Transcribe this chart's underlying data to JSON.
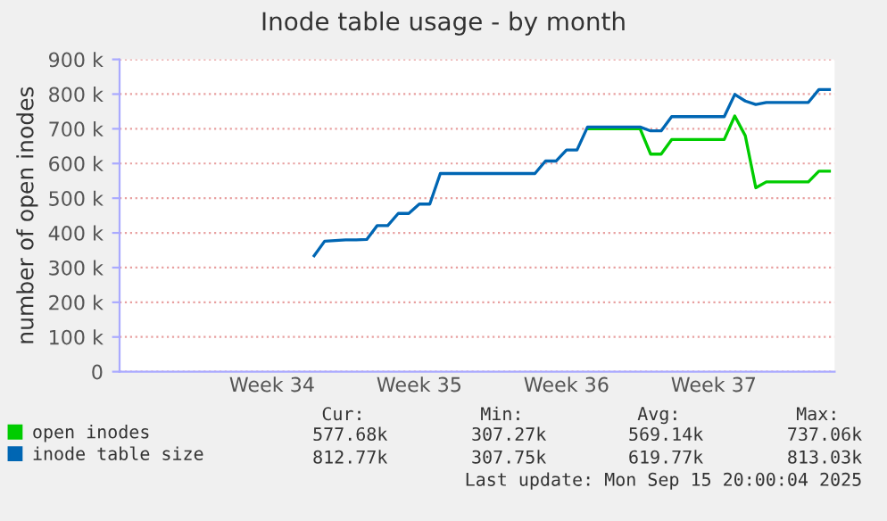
{
  "chart_data": {
    "type": "line",
    "title": "Inode table usage - by month",
    "ylabel": "number of open inodes",
    "categories": [
      null,
      null,
      null,
      null,
      null,
      null,
      null,
      null,
      null,
      null,
      null,
      null,
      null,
      null,
      "Week 34",
      null,
      null,
      null,
      null,
      null,
      null,
      null,
      null,
      null,
      null,
      null,
      null,
      null,
      "Week 35",
      null,
      null,
      null,
      null,
      null,
      null,
      null,
      null,
      null,
      null,
      null,
      null,
      null,
      "Week 36",
      null,
      null,
      null,
      null,
      null,
      null,
      null,
      null,
      null,
      null,
      null,
      null,
      null,
      "Week 37",
      null,
      null,
      null,
      null,
      null,
      null,
      null,
      null,
      null,
      null,
      null
    ],
    "series": [
      {
        "name": "open inodes",
        "color": "#00cc00",
        "values": [
          null,
          null,
          null,
          null,
          null,
          null,
          null,
          null,
          null,
          null,
          null,
          null,
          null,
          null,
          null,
          null,
          null,
          null,
          null,
          null,
          null,
          null,
          null,
          null,
          null,
          null,
          null,
          null,
          null,
          null,
          null,
          null,
          null,
          null,
          null,
          null,
          null,
          null,
          null,
          null,
          null,
          null,
          null,
          null,
          700000,
          700000,
          700000,
          700000,
          700000,
          700000,
          627000,
          627000,
          669000,
          669000,
          669000,
          669000,
          669000,
          669000,
          737000,
          680000,
          530000,
          547000,
          547000,
          547000,
          547000,
          547000,
          578000,
          578000
        ]
      },
      {
        "name": "inode table size",
        "color": "#0066b3",
        "values": [
          null,
          null,
          null,
          null,
          null,
          null,
          null,
          null,
          null,
          null,
          null,
          null,
          null,
          null,
          null,
          null,
          null,
          null,
          334000,
          376000,
          378000,
          380000,
          380000,
          381000,
          421000,
          421000,
          456000,
          456000,
          483000,
          483000,
          571000,
          571000,
          571000,
          571000,
          571000,
          571000,
          571000,
          571000,
          571000,
          571000,
          607000,
          607000,
          639000,
          639000,
          705000,
          705000,
          705000,
          705000,
          705000,
          705000,
          694000,
          694000,
          735000,
          735000,
          735000,
          735000,
          735000,
          735000,
          799000,
          780000,
          770000,
          776000,
          776000,
          776000,
          776000,
          776000,
          813000,
          813000
        ]
      }
    ],
    "ylim": [
      0,
      900000
    ],
    "yticks": [
      0,
      {
        "value": 100000,
        "label": "100 k"
      },
      {
        "value": 200000,
        "label": "200 k"
      },
      {
        "value": 300000,
        "label": "300 k"
      },
      {
        "value": 400000,
        "label": "400 k"
      },
      {
        "value": 500000,
        "label": "500 k"
      },
      {
        "value": 600000,
        "label": "600 k"
      },
      {
        "value": 700000,
        "label": "700 k"
      },
      {
        "value": 800000,
        "label": "800 k"
      },
      {
        "value": 900000,
        "label": "900 k"
      }
    ],
    "grid": "y",
    "legend": "bottom",
    "marker": "none",
    "line_style": "solid",
    "annotations": [
      "Cur:",
      "Min:",
      "Avg:",
      "Max:",
      "577.68k",
      "307.27k",
      "569.14k",
      "737.06k",
      "812.77k",
      "307.75k",
      "619.77k",
      "813.03k",
      "Last update: Mon Sep 15 20:00:04 2025"
    ]
  }
}
